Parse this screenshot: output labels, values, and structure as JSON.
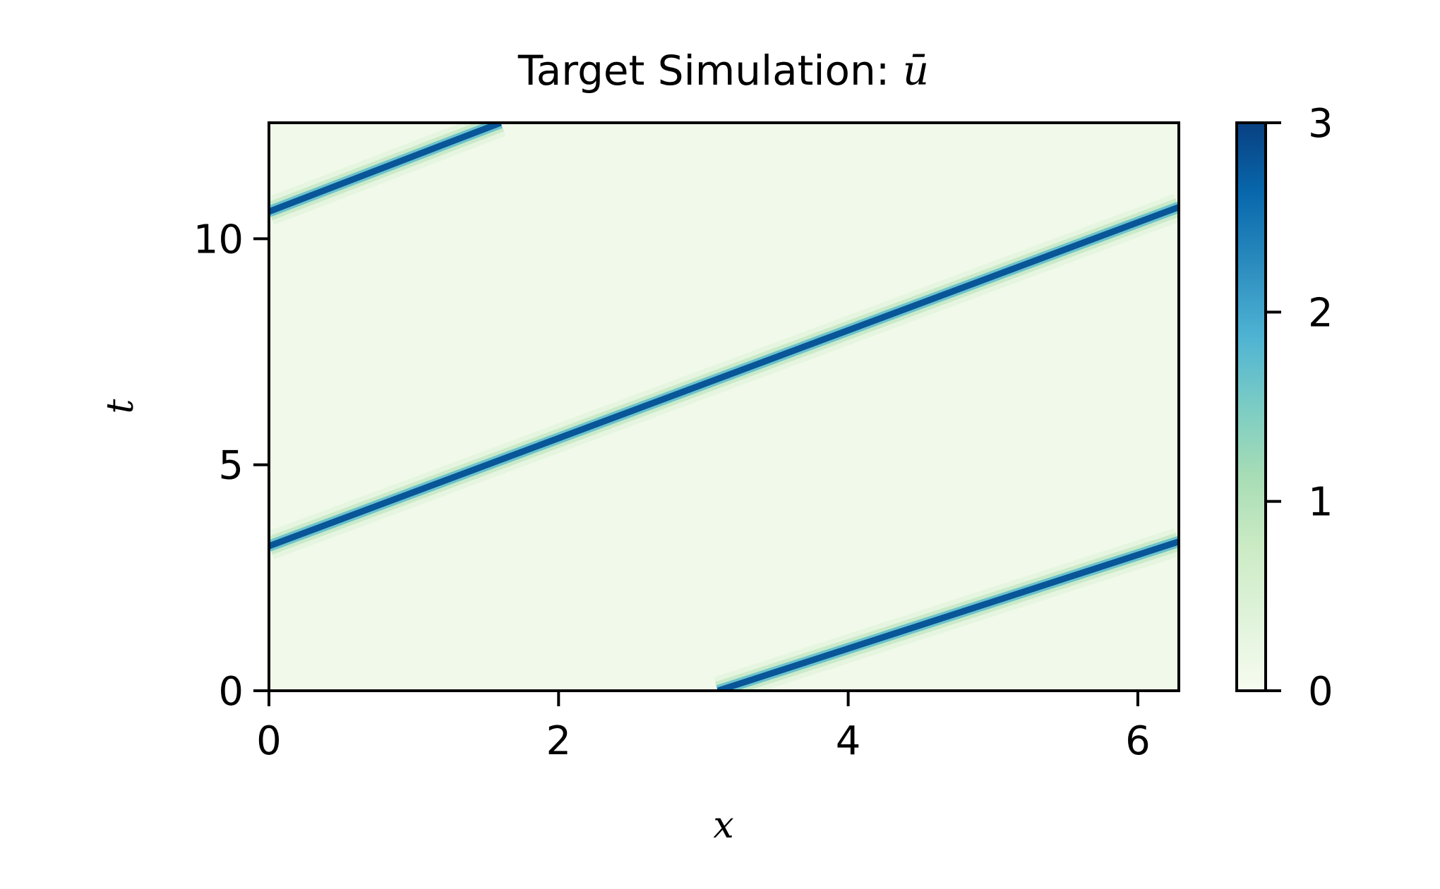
{
  "chart_data": {
    "type": "heatmap",
    "title_prefix": "Target Simulation: ",
    "title_symbol": "ū",
    "xlabel": "x",
    "ylabel": "t",
    "xlim": [
      0,
      6.283
    ],
    "ylim": [
      0,
      12.566
    ],
    "xticks": [
      0,
      2,
      4,
      6
    ],
    "yticks": [
      0,
      5,
      10
    ],
    "colorbar": {
      "min": 0,
      "max": 3,
      "ticks": [
        0,
        1,
        2,
        3
      ],
      "colormap": "GnBu"
    },
    "field": {
      "description_values": "traveling soliton ridge, periodic in x",
      "peak_value": 2.8,
      "background_value": 0.1,
      "wave_speed": 0.5,
      "period_x": 6.283,
      "ridges": [
        {
          "x": [
            3.1,
            6.283
          ],
          "t": [
            0,
            3.3
          ]
        },
        {
          "x": [
            0,
            6.283
          ],
          "t": [
            3.2,
            10.7
          ]
        },
        {
          "x": [
            0,
            1.6
          ],
          "t": [
            10.6,
            12.566
          ]
        }
      ]
    },
    "colors": {
      "colormap_stops": [
        "#f7fcf0",
        "#e0f3db",
        "#ccebc5",
        "#a8ddb5",
        "#7bccc4",
        "#4eb3d3",
        "#2b8cbe",
        "#0868ac",
        "#084081"
      ]
    }
  }
}
